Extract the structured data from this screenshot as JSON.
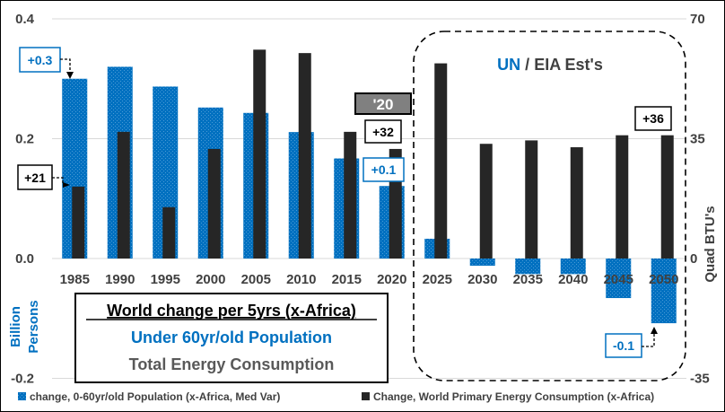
{
  "chart_data": {
    "type": "bar",
    "categories": [
      "1985",
      "1990",
      "1995",
      "2000",
      "2005",
      "2010",
      "2015",
      "2020",
      "2025",
      "2030",
      "2035",
      "2040",
      "2045",
      "2050"
    ],
    "series": [
      {
        "name": "change, 0-60yr/old Population (x-Africa, Med Var)",
        "axis": "left",
        "color": "#0070C0",
        "values": [
          0.3,
          0.32,
          0.287,
          0.252,
          0.243,
          0.211,
          0.167,
          0.121,
          0.033,
          -0.012,
          -0.026,
          -0.026,
          -0.066,
          -0.108
        ]
      },
      {
        "name": "Change, World Primary Energy Consumption (x-Africa)",
        "axis": "right",
        "color": "#262626",
        "values": [
          21,
          37,
          15,
          32,
          61,
          60,
          37,
          32,
          57,
          33.5,
          34.5,
          32.5,
          36,
          36
        ]
      }
    ],
    "ylim_left": [
      -0.2,
      0.4
    ],
    "ylim_right": [
      -35,
      70
    ],
    "yticks_left": [
      "0.4",
      "0.2",
      "0.0",
      "-0.2"
    ],
    "yticks_right": [
      "70",
      "35",
      "0",
      "-35"
    ],
    "ylabel_left": [
      "Billion",
      "Persons"
    ],
    "ylabel_right": "Quad BTU's",
    "title_box": {
      "line1": "World change per 5yrs (x-Africa)",
      "line2": "Under 60yr/old Population",
      "line3": "Total Energy Consumption"
    },
    "projection_label": {
      "un": "UN",
      "separator": " / ",
      "eia": "EIA Est's"
    },
    "annotations": {
      "pop_1985": "+0.3",
      "energy_1985": "+21",
      "year_2020": "'20",
      "energy_2020": "+32",
      "pop_2020": "+0.1",
      "energy_2050": "+36",
      "pop_2050": "-0.1"
    },
    "legend": {
      "population": "change, 0-60yr/old Population (x-Africa, Med Var)",
      "energy": "Change, World Primary Energy Consumption (x-Africa)"
    }
  }
}
